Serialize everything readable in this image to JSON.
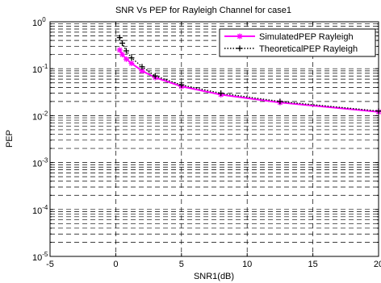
{
  "chart_data": {
    "type": "line",
    "title": "SNR Vs PEP for Rayleigh Channel for case1",
    "xlabel": "SNR1(dB)",
    "ylabel": "PEP",
    "xlim": [
      -5,
      20
    ],
    "ylim": [
      1e-05,
      1
    ],
    "yscale": "log",
    "grid": true,
    "x_ticks": [
      -5,
      0,
      5,
      10,
      15,
      20
    ],
    "x_tick_labels": [
      "-5",
      "0",
      "5",
      "10",
      "15",
      "20"
    ],
    "y_ticks": [
      1e-05,
      0.0001,
      0.001,
      0.01,
      0.1,
      1
    ],
    "y_tick_labels": [
      {
        "base": "10",
        "exp": "-5"
      },
      {
        "base": "10",
        "exp": "-4"
      },
      {
        "base": "10",
        "exp": "-3"
      },
      {
        "base": "10",
        "exp": "-2"
      },
      {
        "base": "10",
        "exp": "-1"
      },
      {
        "base": "10",
        "exp": "0"
      }
    ],
    "legend_position": "top-right",
    "series": [
      {
        "name": "SimulatedPEP Rayleigh",
        "color": "#ff00ff",
        "marker": "star",
        "x": [
          0.3,
          0.5,
          0.8,
          1.2,
          2.0,
          3.0,
          5.0,
          8.0,
          12.5,
          20.0
        ],
        "y": [
          0.25,
          0.2,
          0.16,
          0.13,
          0.09,
          0.065,
          0.042,
          0.028,
          0.019,
          0.012
        ]
      },
      {
        "name": "TheoreticalPEP Rayleigh",
        "color": "#000000",
        "marker": "plus",
        "x": [
          0.3,
          0.5,
          0.8,
          1.2,
          2.0,
          3.0,
          5.0,
          8.0,
          12.5,
          20.0
        ],
        "y": [
          0.46,
          0.35,
          0.24,
          0.17,
          0.11,
          0.07,
          0.045,
          0.03,
          0.02,
          0.0125
        ]
      }
    ]
  }
}
